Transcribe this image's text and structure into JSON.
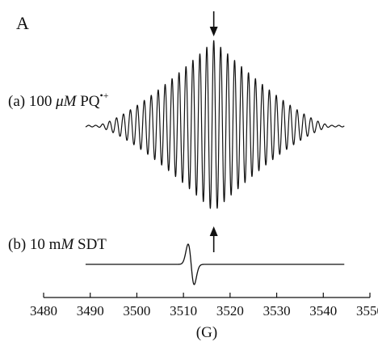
{
  "panel_letter": "A",
  "chart_data": {
    "type": "line",
    "xlabel": "(G)",
    "xlim": [
      3480,
      3550
    ],
    "x_ticks": [
      3480,
      3490,
      3500,
      3510,
      3520,
      3530,
      3540,
      3550
    ],
    "grid": false,
    "series": [
      {
        "id": "a",
        "label_prefix": "(a) 100 ",
        "label_unit": "μM",
        "label_species": " PQ",
        "label_superscript": "•+",
        "x_range": [
          3489,
          3544.5
        ],
        "center": 3516.5,
        "description_lines": 28
      },
      {
        "id": "b",
        "label_prefix": "(b) 10 m",
        "label_unit": "M",
        "label_species": " SDT",
        "label_superscript": "",
        "x_range": [
          3489,
          3544.5
        ],
        "derivative_peak_x": 3511,
        "derivative_trough_x": 3512.3
      }
    ],
    "annotations": [
      {
        "type": "arrow",
        "direction": "down",
        "x": 3516.5,
        "target": "a"
      },
      {
        "type": "arrow",
        "direction": "up",
        "x": 3516.5,
        "target": "a-bottom"
      }
    ]
  }
}
